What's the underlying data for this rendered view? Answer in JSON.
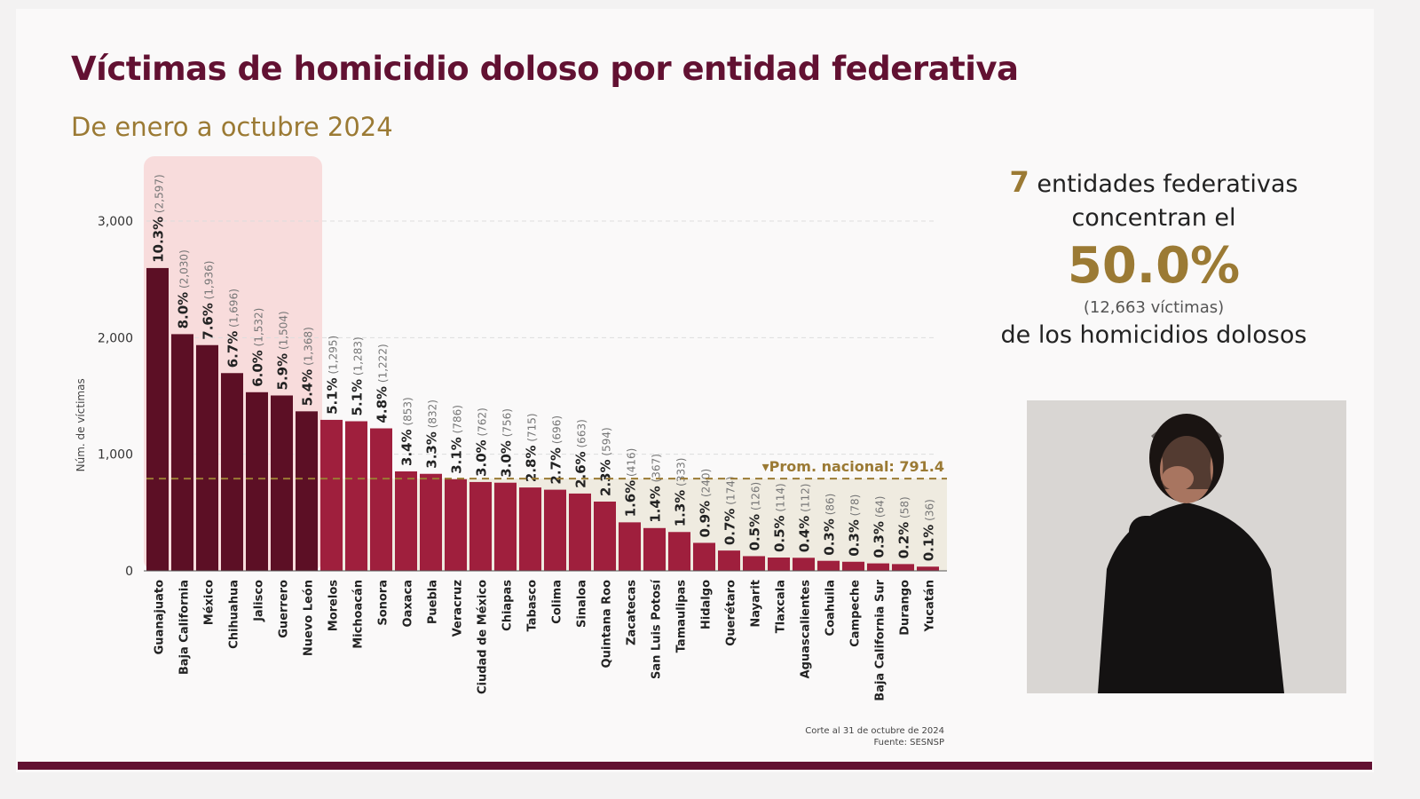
{
  "title": "Víctimas de homicidio doloso por entidad federativa",
  "subtitle": "De enero a octubre 2024",
  "side_panel": {
    "count": "7",
    "line1": "entidades federativas",
    "line2": "concentran el",
    "percent": "50.0%",
    "victims": "(12,663  víctimas)",
    "line3": "de los homicidios dolosos"
  },
  "notes": {
    "cut": "Corte al 31 de octubre de 2024",
    "source": "Fuente: SESNSP"
  },
  "colors": {
    "top": "#5c0f25",
    "rest": "#9f1f3d",
    "highlight": "#f8dcdc",
    "below_avg": "#efebe0",
    "accent": "#9b7a34",
    "title": "#621132"
  },
  "chart_data": {
    "type": "bar",
    "title": "Víctimas de homicidio doloso por entidad federativa",
    "subtitle": "De enero a octubre 2024",
    "xlabel": "",
    "ylabel": "Núm. de víctimas",
    "ylim": [
      0,
      3000
    ],
    "yticks": [
      "0",
      "1,000",
      "2,000",
      "3,000"
    ],
    "grid": true,
    "average": {
      "label": "▾Prom. nacional: 791.4",
      "value": 791.4
    },
    "highlighted_count": 7,
    "categories": [
      "Guanajuato",
      "Baja California",
      "México",
      "Chihuahua",
      "Jalisco",
      "Guerrero",
      "Nuevo León",
      "Morelos",
      "Michoacán",
      "Sonora",
      "Oaxaca",
      "Puebla",
      "Veracruz",
      "Ciudad de México",
      "Chiapas",
      "Tabasco",
      "Colima",
      "Sinaloa",
      "Quintana Roo",
      "Zacatecas",
      "San Luis Potosí",
      "Tamaulipas",
      "Hidalgo",
      "Querétaro",
      "Nayarit",
      "Tlaxcala",
      "Aguascalientes",
      "Coahuila",
      "Campeche",
      "Baja California Sur",
      "Durango",
      "Yucatán"
    ],
    "values": [
      2597,
      2030,
      1936,
      1696,
      1532,
      1504,
      1368,
      1295,
      1283,
      1222,
      853,
      832,
      786,
      762,
      756,
      715,
      696,
      663,
      594,
      416,
      367,
      333,
      240,
      174,
      126,
      114,
      112,
      86,
      78,
      64,
      58,
      36
    ],
    "value_labels": [
      "(2,597)",
      "(2,030)",
      "(1,936)",
      "(1,696)",
      "(1,532)",
      "(1,504)",
      "(1,368)",
      "(1,295)",
      "(1,283)",
      "(1,222)",
      "(853)",
      "(832)",
      "(786)",
      "(762)",
      "(756)",
      "(715)",
      "(696)",
      "(663)",
      "(594)",
      "(416)",
      "(367)",
      "(333)",
      "(240)",
      "(174)",
      "(126)",
      "(114)",
      "(112)",
      "(86)",
      "(78)",
      "(64)",
      "(58)",
      "(36)"
    ],
    "percent_labels": [
      "10.3%",
      "8.0%",
      "7.6%",
      "6.7%",
      "6.0%",
      "5.9%",
      "5.4%",
      "5.1%",
      "5.1%",
      "4.8%",
      "3.4%",
      "3.3%",
      "3.1%",
      "3.0%",
      "3.0%",
      "2.8%",
      "2.7%",
      "2.6%",
      "2.3%",
      "1.6%",
      "1.4%",
      "1.3%",
      "0.9%",
      "0.7%",
      "0.5%",
      "0.5%",
      "0.4%",
      "0.3%",
      "0.3%",
      "0.3%",
      "0.2%",
      "0.1%"
    ]
  }
}
